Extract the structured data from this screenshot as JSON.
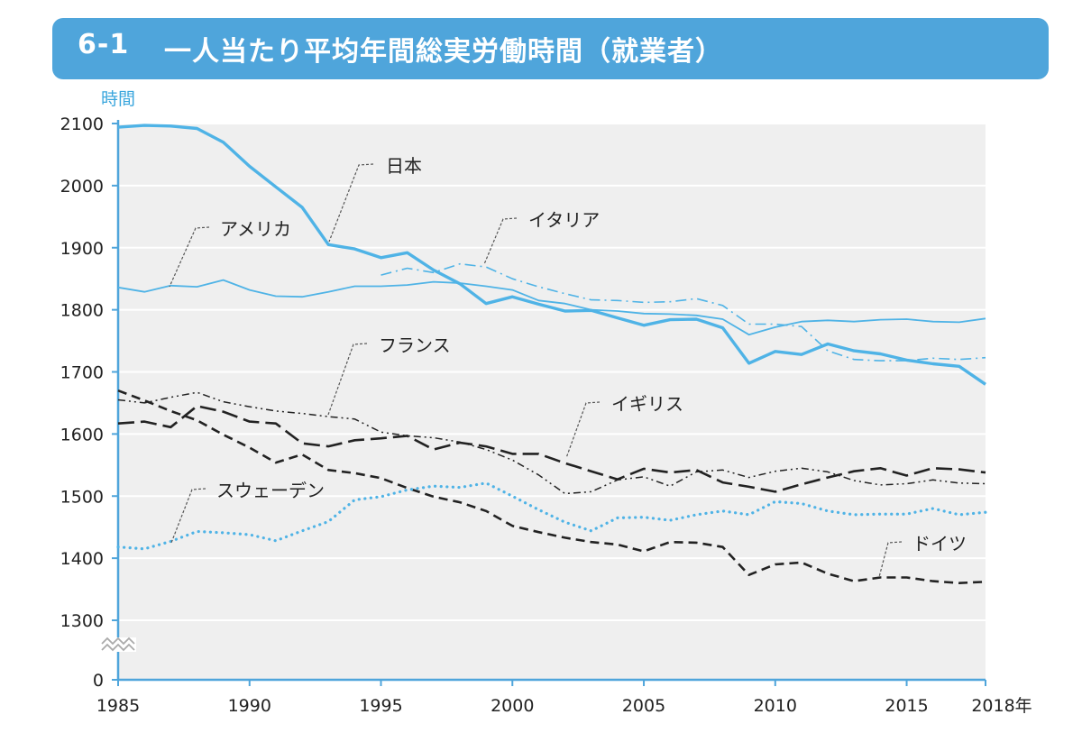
{
  "title": {
    "number": "6-1",
    "text": "一人当たり平均年間総実労働時間（就業者）"
  },
  "chart_data": {
    "type": "line",
    "y_unit_label": "時間",
    "x_last_tick_label": "2018年",
    "x_ticks": [
      1985,
      1990,
      1995,
      2000,
      2005,
      2010,
      2015
    ],
    "y_ticks": [
      1300,
      1400,
      1500,
      1600,
      1700,
      1800,
      1900,
      2000,
      2100
    ],
    "y_axis_break": {
      "zero_label": "0"
    },
    "xlim": [
      1985,
      2018
    ],
    "ylim": [
      1300,
      2100
    ],
    "grid": true,
    "colors": {
      "accent": "#4fa5db",
      "japan": "#4fb3e6",
      "dark": "#222222",
      "plot_bg": "#efefef"
    },
    "series": [
      {
        "name": "日本",
        "style": "solid-thick",
        "color": "#4fb3e6",
        "x": [
          1985,
          1986,
          1987,
          1988,
          1989,
          1990,
          1991,
          1992,
          1993,
          1994,
          1995,
          1996,
          1997,
          1998,
          1999,
          2000,
          2001,
          2002,
          2003,
          2004,
          2005,
          2006,
          2007,
          2008,
          2009,
          2010,
          2011,
          2012,
          2013,
          2014,
          2015,
          2016,
          2017,
          2018
        ],
        "values": [
          2094,
          2097,
          2096,
          2092,
          2070,
          2031,
          1998,
          1965,
          1905,
          1898,
          1884,
          1892,
          1864,
          1842,
          1810,
          1821,
          1809,
          1798,
          1799,
          1787,
          1775,
          1784,
          1785,
          1771,
          1714,
          1733,
          1728,
          1745,
          1734,
          1729,
          1719,
          1713,
          1709,
          1680
        ]
      },
      {
        "name": "アメリカ",
        "style": "solid-thin",
        "color": "#4fb3e6",
        "x": [
          1985,
          1986,
          1987,
          1988,
          1989,
          1990,
          1991,
          1992,
          1993,
          1994,
          1995,
          1996,
          1997,
          1998,
          1999,
          2000,
          2001,
          2002,
          2003,
          2004,
          2005,
          2006,
          2007,
          2008,
          2009,
          2010,
          2011,
          2012,
          2013,
          2014,
          2015,
          2016,
          2017,
          2018
        ],
        "values": [
          1836,
          1829,
          1839,
          1837,
          1848,
          1832,
          1822,
          1821,
          1829,
          1838,
          1838,
          1840,
          1845,
          1843,
          1838,
          1832,
          1815,
          1810,
          1800,
          1798,
          1794,
          1793,
          1791,
          1785,
          1760,
          1772,
          1781,
          1783,
          1781,
          1784,
          1785,
          1781,
          1780,
          1786
        ]
      },
      {
        "name": "イタリア",
        "style": "dash-dot",
        "color": "#4fb3e6",
        "x": [
          1995,
          1996,
          1997,
          1998,
          1999,
          2000,
          2001,
          2002,
          2003,
          2004,
          2005,
          2006,
          2007,
          2008,
          2009,
          2010,
          2011,
          2012,
          2013,
          2014,
          2015,
          2016,
          2017,
          2018
        ],
        "values": [
          1856,
          1867,
          1860,
          1874,
          1869,
          1850,
          1837,
          1826,
          1816,
          1815,
          1812,
          1813,
          1818,
          1807,
          1777,
          1777,
          1773,
          1734,
          1720,
          1718,
          1718,
          1722,
          1720,
          1723
        ]
      },
      {
        "name": "イギリス",
        "style": "long-dash",
        "color": "#222222",
        "x": [
          1985,
          1986,
          1987,
          1988,
          1989,
          1990,
          1991,
          1992,
          1993,
          1994,
          1995,
          1996,
          1997,
          1998,
          1999,
          2000,
          2001,
          2002,
          2003,
          2004,
          2005,
          2006,
          2007,
          2008,
          2009,
          2010,
          2011,
          2012,
          2013,
          2014,
          2015,
          2016,
          2017,
          2018
        ],
        "values": [
          1617,
          1620,
          1611,
          1645,
          1636,
          1620,
          1617,
          1585,
          1580,
          1590,
          1593,
          1597,
          1575,
          1586,
          1580,
          1568,
          1568,
          1553,
          1540,
          1527,
          1544,
          1538,
          1542,
          1522,
          1515,
          1507,
          1519,
          1530,
          1540,
          1545,
          1533,
          1545,
          1543,
          1538
        ]
      },
      {
        "name": "フランス",
        "style": "dash-dot-dot",
        "color": "#222222",
        "x": [
          1985,
          1986,
          1987,
          1988,
          1989,
          1990,
          1991,
          1992,
          1993,
          1994,
          1995,
          1996,
          1997,
          1998,
          1999,
          2000,
          2001,
          2002,
          2003,
          2004,
          2005,
          2006,
          2007,
          2008,
          2009,
          2010,
          2011,
          2012,
          2013,
          2014,
          2015,
          2016,
          2017,
          2018
        ],
        "values": [
          1655,
          1650,
          1659,
          1667,
          1652,
          1644,
          1637,
          1633,
          1628,
          1624,
          1603,
          1597,
          1594,
          1587,
          1575,
          1558,
          1534,
          1504,
          1507,
          1526,
          1531,
          1516,
          1539,
          1542,
          1530,
          1540,
          1545,
          1539,
          1525,
          1518,
          1520,
          1526,
          1521,
          1520
        ]
      },
      {
        "name": "スウェーデン",
        "style": "dotted",
        "color": "#4fb3e6",
        "x": [
          1985,
          1986,
          1987,
          1988,
          1989,
          1990,
          1991,
          1992,
          1993,
          1994,
          1995,
          1996,
          1997,
          1998,
          1999,
          2000,
          2001,
          2002,
          2003,
          2004,
          2005,
          2006,
          2007,
          2008,
          2009,
          2010,
          2011,
          2012,
          2013,
          2014,
          2015,
          2016,
          2017,
          2018
        ],
        "values": [
          1418,
          1415,
          1427,
          1443,
          1441,
          1438,
          1428,
          1444,
          1459,
          1494,
          1499,
          1510,
          1516,
          1514,
          1521,
          1500,
          1478,
          1458,
          1444,
          1465,
          1466,
          1461,
          1470,
          1476,
          1470,
          1491,
          1488,
          1476,
          1470,
          1471,
          1471,
          1480,
          1470,
          1474
        ]
      },
      {
        "name": "ドイツ",
        "style": "medium-dash",
        "color": "#222222",
        "x": [
          1985,
          1986,
          1987,
          1988,
          1989,
          1990,
          1991,
          1992,
          1993,
          1994,
          1995,
          1996,
          1997,
          1998,
          1999,
          2000,
          2001,
          2002,
          2003,
          2004,
          2005,
          2006,
          2007,
          2008,
          2009,
          2010,
          2011,
          2012,
          2013,
          2014,
          2015,
          2016,
          2017,
          2018
        ],
        "values": [
          1670,
          1654,
          1637,
          1622,
          1599,
          1578,
          1554,
          1567,
          1542,
          1537,
          1529,
          1513,
          1499,
          1490,
          1476,
          1452,
          1442,
          1433,
          1426,
          1422,
          1411,
          1426,
          1425,
          1418,
          1373,
          1390,
          1393,
          1375,
          1363,
          1369,
          1369,
          1363,
          1360,
          1362
        ]
      }
    ],
    "labels": [
      {
        "series": "日本",
        "text": "日本"
      },
      {
        "series": "アメリカ",
        "text": "アメリカ"
      },
      {
        "series": "イタリア",
        "text": "イタリア"
      },
      {
        "series": "フランス",
        "text": "フランス"
      },
      {
        "series": "イギリス",
        "text": "イギリス"
      },
      {
        "series": "スウェーデン",
        "text": "スウェーデン"
      },
      {
        "series": "ドイツ",
        "text": "ドイツ"
      }
    ]
  }
}
